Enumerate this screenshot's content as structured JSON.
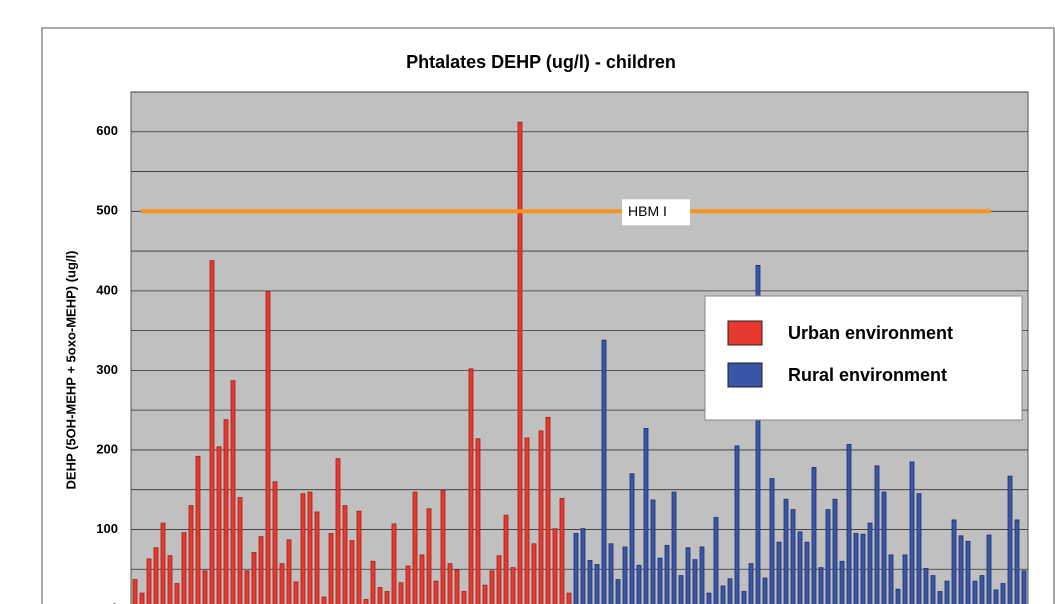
{
  "chart_data": {
    "type": "bar",
    "title": "Phtalates DEHP (ug/l) - children",
    "y_label": "DEHP (5OH-MEHP + 5oxo-MEHP) (ug/l)",
    "ylim": [
      0,
      650
    ],
    "yticks": [
      0,
      100,
      200,
      300,
      400,
      500,
      600
    ],
    "minor_yticks": [
      50,
      150,
      250,
      350,
      450,
      550,
      650
    ],
    "grid": true,
    "legend_position": "right",
    "reference_line": {
      "label": "HBM I",
      "value": 500,
      "color": "#f7941d"
    },
    "series": [
      {
        "name": "Urban environment",
        "color": "#e8392f",
        "values": [
          37,
          20,
          63,
          77,
          108,
          67,
          32,
          96,
          130,
          192,
          48,
          438,
          204,
          238,
          287,
          140,
          48,
          71,
          91,
          399,
          160,
          57,
          87,
          34,
          145,
          147,
          122,
          15,
          95,
          189,
          130,
          86,
          123,
          12,
          60,
          27,
          22,
          107,
          33,
          54,
          147,
          68,
          126,
          35,
          149,
          57,
          49,
          22,
          302,
          214,
          30,
          48,
          67,
          118,
          52,
          612,
          215,
          82,
          224,
          241,
          101,
          139,
          20
        ]
      },
      {
        "name": "Rural environment",
        "color": "#3a56a8",
        "values": [
          95,
          101,
          61,
          56,
          338,
          82,
          37,
          78,
          170,
          55,
          227,
          137,
          64,
          80,
          147,
          42,
          77,
          62,
          78,
          20,
          115,
          29,
          38,
          205,
          22,
          57,
          432,
          39,
          164,
          84,
          138,
          125,
          97,
          84,
          178,
          52,
          125,
          138,
          60,
          207,
          95,
          94,
          108,
          180,
          147,
          68,
          25,
          68,
          185,
          145,
          51,
          42,
          22,
          35,
          112,
          92,
          85,
          35,
          42,
          93,
          24,
          32,
          167,
          112,
          48
        ]
      }
    ]
  }
}
